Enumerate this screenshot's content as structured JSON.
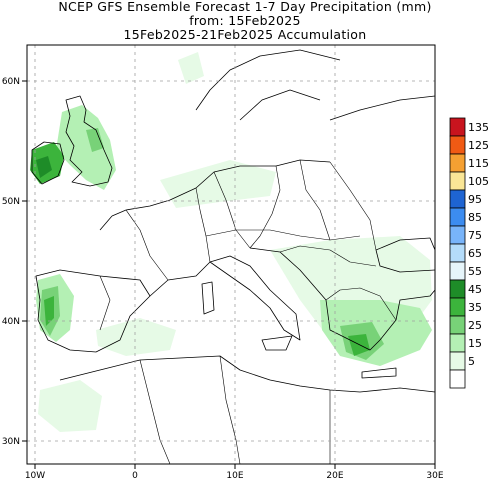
{
  "header": {
    "line1": "NCEP GFS Ensemble Forecast 1-7 Day Precipitation (mm)",
    "line2": "from: 15Feb2025",
    "line3": "15Feb2025-21Feb2025 Accumulation"
  },
  "axes": {
    "lat_labels": [
      "60N",
      "50N",
      "40N",
      "30N"
    ],
    "lon_labels": [
      "10W",
      "0",
      "10E",
      "20E",
      "30E"
    ]
  },
  "legend": {
    "entries": [
      {
        "label": "135",
        "color": "#c8141e"
      },
      {
        "label": "125",
        "color": "#f05a14"
      },
      {
        "label": "115",
        "color": "#f5a032"
      },
      {
        "label": "105",
        "color": "#fae696"
      },
      {
        "label": "95",
        "color": "#1e64d2"
      },
      {
        "label": "85",
        "color": "#3c8cf0"
      },
      {
        "label": "75",
        "color": "#78b4fa"
      },
      {
        "label": "65",
        "color": "#b4dcfa"
      },
      {
        "label": "55",
        "color": "#e6f5fa"
      },
      {
        "label": "45",
        "color": "#1e8c28"
      },
      {
        "label": "35",
        "color": "#3cb43c"
      },
      {
        "label": "25",
        "color": "#78d278"
      },
      {
        "label": "15",
        "color": "#b4f0b4"
      },
      {
        "label": "5",
        "color": "#e6fae6"
      },
      {
        "label": "",
        "color": "#ffffff"
      }
    ]
  }
}
